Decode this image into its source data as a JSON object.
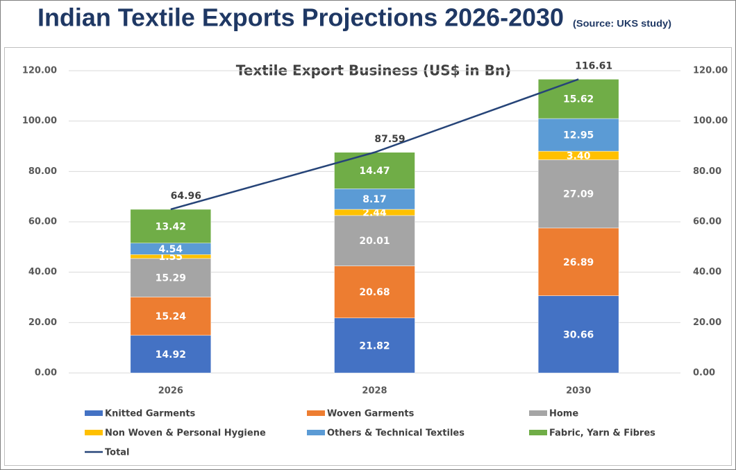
{
  "title": "Indian Textile Exports Projections 2026-2030",
  "subtitle": "(Source: UKS study)",
  "chart_data": {
    "type": "bar",
    "stacked": true,
    "title": "Textile Export Business (US$ in Bn)",
    "categories": [
      "2026",
      "2028",
      "2030"
    ],
    "series": [
      {
        "name": "Knitted Garments",
        "color": "#4472c4",
        "values": [
          14.92,
          21.82,
          30.66
        ]
      },
      {
        "name": "Woven Garments",
        "color": "#ed7d31",
        "values": [
          15.24,
          20.68,
          26.89
        ]
      },
      {
        "name": "Home",
        "color": "#a5a5a5",
        "values": [
          15.29,
          20.01,
          27.09
        ]
      },
      {
        "name": "Non Woven & Personal Hygiene",
        "color": "#ffc000",
        "values": [
          1.55,
          2.44,
          3.4
        ],
        "value_labels": [
          "1.55",
          "2.44",
          "3.40"
        ]
      },
      {
        "name": "Others & Technical Textiles",
        "color": "#5b9bd5",
        "values": [
          4.54,
          8.17,
          12.95
        ]
      },
      {
        "name": "Fabric, Yarn & Fibres",
        "color": "#70ad47",
        "values": [
          13.42,
          14.47,
          15.62
        ]
      },
      {
        "name": "Total",
        "type": "line",
        "color": "#264478",
        "values": [
          64.96,
          87.59,
          116.61
        ]
      }
    ],
    "ylim": [
      0,
      120
    ],
    "yticks": [
      {
        "value": 0,
        "label": "0.00"
      },
      {
        "value": 20,
        "label": "20.00"
      },
      {
        "value": 40,
        "label": "40.00"
      },
      {
        "value": 60,
        "label": "60.00"
      },
      {
        "value": 80,
        "label": "80.00"
      },
      {
        "value": 100,
        "label": "100.00"
      },
      {
        "value": 120,
        "label": "120.00"
      }
    ],
    "y2lim": [
      0,
      120
    ],
    "y2ticks": [
      {
        "value": 0,
        "label": "0.00"
      },
      {
        "value": 20,
        "label": "20.00"
      },
      {
        "value": 40,
        "label": "40.00"
      },
      {
        "value": 60,
        "label": "60.00"
      },
      {
        "value": 80,
        "label": "80.00"
      },
      {
        "value": 100,
        "label": "100.00"
      },
      {
        "value": 120,
        "label": "120.00"
      }
    ],
    "grid": true,
    "legend": "bottom"
  }
}
